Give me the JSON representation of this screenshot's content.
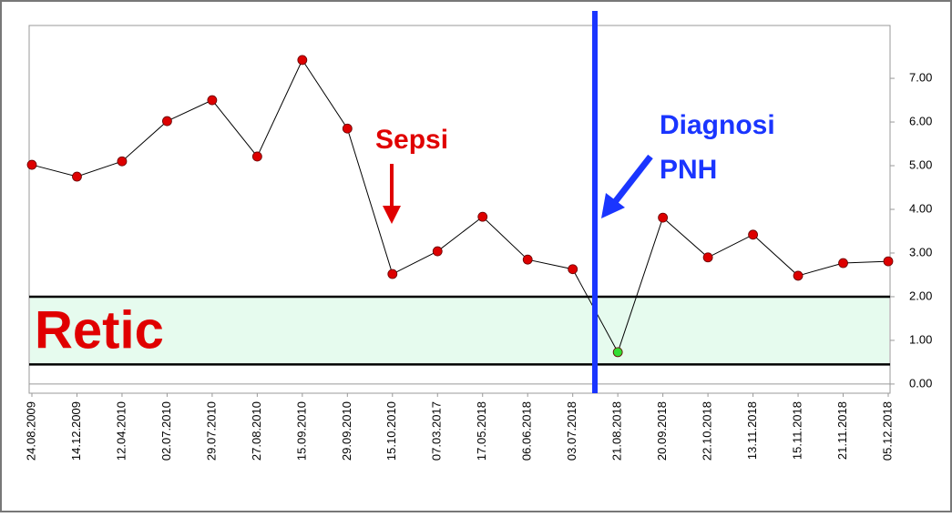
{
  "chart_data": {
    "type": "line",
    "categories": [
      "24.08.2009",
      "14.12.2009",
      "12.04.2010",
      "02.07.2010",
      "29.07.2010",
      "27.08.2010",
      "15.09.2010",
      "29.09.2010",
      "15.10.2010",
      "07.03.2017",
      "17.05.2018",
      "06.06.2018",
      "03.07.2018",
      "21.08.2018",
      "20.09.2018",
      "22.10.2018",
      "13.11.2018",
      "15.11.2018",
      "21.11.2018",
      "05.12.2018"
    ],
    "values": [
      5.02,
      4.75,
      5.1,
      6.02,
      6.5,
      5.21,
      7.42,
      5.85,
      2.52,
      3.04,
      3.83,
      2.85,
      2.63,
      0.73,
      3.81,
      2.9,
      3.42,
      2.48,
      2.77,
      2.81
    ],
    "color": "#dd0000",
    "in_range_color": "#33dd33",
    "line_color": "#000000",
    "reference_range": [
      0.45,
      2.0
    ],
    "reference_fill": "#e6fbee",
    "ylim": [
      -0.21,
      8.21
    ],
    "yticks": [
      {
        "value": 0,
        "label": "0.00"
      },
      {
        "value": 1,
        "label": "1.00"
      },
      {
        "value": 2,
        "label": "2.00"
      },
      {
        "value": 3,
        "label": "3.00"
      },
      {
        "value": 4,
        "label": "4.00"
      },
      {
        "value": 5,
        "label": "5.00"
      },
      {
        "value": 6,
        "label": "6.00"
      },
      {
        "value": 7,
        "label": "7.00"
      }
    ],
    "annotations": {
      "range_label": "Retic",
      "event": "Sepsi",
      "diagnosis": [
        "Diagnosi",
        "PNH"
      ]
    }
  }
}
